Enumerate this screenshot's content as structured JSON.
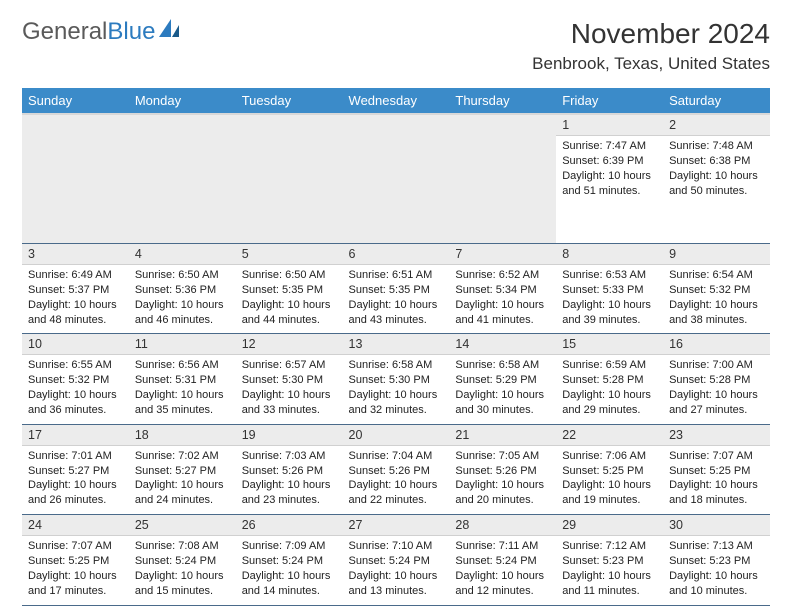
{
  "brand": {
    "word1": "General",
    "word2": "Blue",
    "word1_color": "#5a5a5a",
    "word2_color": "#2c7bbf"
  },
  "title": "November 2024",
  "location": "Benbrook, Texas, United States",
  "header_bg": "#3b8bc9",
  "day_labels": [
    "Sunday",
    "Monday",
    "Tuesday",
    "Wednesday",
    "Thursday",
    "Friday",
    "Saturday"
  ],
  "weeks": [
    [
      {
        "n": "",
        "sr": "",
        "ss": "",
        "dl": ""
      },
      {
        "n": "",
        "sr": "",
        "ss": "",
        "dl": ""
      },
      {
        "n": "",
        "sr": "",
        "ss": "",
        "dl": ""
      },
      {
        "n": "",
        "sr": "",
        "ss": "",
        "dl": ""
      },
      {
        "n": "",
        "sr": "",
        "ss": "",
        "dl": ""
      },
      {
        "n": "1",
        "sr": "Sunrise: 7:47 AM",
        "ss": "Sunset: 6:39 PM",
        "dl": "Daylight: 10 hours and 51 minutes."
      },
      {
        "n": "2",
        "sr": "Sunrise: 7:48 AM",
        "ss": "Sunset: 6:38 PM",
        "dl": "Daylight: 10 hours and 50 minutes."
      }
    ],
    [
      {
        "n": "3",
        "sr": "Sunrise: 6:49 AM",
        "ss": "Sunset: 5:37 PM",
        "dl": "Daylight: 10 hours and 48 minutes."
      },
      {
        "n": "4",
        "sr": "Sunrise: 6:50 AM",
        "ss": "Sunset: 5:36 PM",
        "dl": "Daylight: 10 hours and 46 minutes."
      },
      {
        "n": "5",
        "sr": "Sunrise: 6:50 AM",
        "ss": "Sunset: 5:35 PM",
        "dl": "Daylight: 10 hours and 44 minutes."
      },
      {
        "n": "6",
        "sr": "Sunrise: 6:51 AM",
        "ss": "Sunset: 5:35 PM",
        "dl": "Daylight: 10 hours and 43 minutes."
      },
      {
        "n": "7",
        "sr": "Sunrise: 6:52 AM",
        "ss": "Sunset: 5:34 PM",
        "dl": "Daylight: 10 hours and 41 minutes."
      },
      {
        "n": "8",
        "sr": "Sunrise: 6:53 AM",
        "ss": "Sunset: 5:33 PM",
        "dl": "Daylight: 10 hours and 39 minutes."
      },
      {
        "n": "9",
        "sr": "Sunrise: 6:54 AM",
        "ss": "Sunset: 5:32 PM",
        "dl": "Daylight: 10 hours and 38 minutes."
      }
    ],
    [
      {
        "n": "10",
        "sr": "Sunrise: 6:55 AM",
        "ss": "Sunset: 5:32 PM",
        "dl": "Daylight: 10 hours and 36 minutes."
      },
      {
        "n": "11",
        "sr": "Sunrise: 6:56 AM",
        "ss": "Sunset: 5:31 PM",
        "dl": "Daylight: 10 hours and 35 minutes."
      },
      {
        "n": "12",
        "sr": "Sunrise: 6:57 AM",
        "ss": "Sunset: 5:30 PM",
        "dl": "Daylight: 10 hours and 33 minutes."
      },
      {
        "n": "13",
        "sr": "Sunrise: 6:58 AM",
        "ss": "Sunset: 5:30 PM",
        "dl": "Daylight: 10 hours and 32 minutes."
      },
      {
        "n": "14",
        "sr": "Sunrise: 6:58 AM",
        "ss": "Sunset: 5:29 PM",
        "dl": "Daylight: 10 hours and 30 minutes."
      },
      {
        "n": "15",
        "sr": "Sunrise: 6:59 AM",
        "ss": "Sunset: 5:28 PM",
        "dl": "Daylight: 10 hours and 29 minutes."
      },
      {
        "n": "16",
        "sr": "Sunrise: 7:00 AM",
        "ss": "Sunset: 5:28 PM",
        "dl": "Daylight: 10 hours and 27 minutes."
      }
    ],
    [
      {
        "n": "17",
        "sr": "Sunrise: 7:01 AM",
        "ss": "Sunset: 5:27 PM",
        "dl": "Daylight: 10 hours and 26 minutes."
      },
      {
        "n": "18",
        "sr": "Sunrise: 7:02 AM",
        "ss": "Sunset: 5:27 PM",
        "dl": "Daylight: 10 hours and 24 minutes."
      },
      {
        "n": "19",
        "sr": "Sunrise: 7:03 AM",
        "ss": "Sunset: 5:26 PM",
        "dl": "Daylight: 10 hours and 23 minutes."
      },
      {
        "n": "20",
        "sr": "Sunrise: 7:04 AM",
        "ss": "Sunset: 5:26 PM",
        "dl": "Daylight: 10 hours and 22 minutes."
      },
      {
        "n": "21",
        "sr": "Sunrise: 7:05 AM",
        "ss": "Sunset: 5:26 PM",
        "dl": "Daylight: 10 hours and 20 minutes."
      },
      {
        "n": "22",
        "sr": "Sunrise: 7:06 AM",
        "ss": "Sunset: 5:25 PM",
        "dl": "Daylight: 10 hours and 19 minutes."
      },
      {
        "n": "23",
        "sr": "Sunrise: 7:07 AM",
        "ss": "Sunset: 5:25 PM",
        "dl": "Daylight: 10 hours and 18 minutes."
      }
    ],
    [
      {
        "n": "24",
        "sr": "Sunrise: 7:07 AM",
        "ss": "Sunset: 5:25 PM",
        "dl": "Daylight: 10 hours and 17 minutes."
      },
      {
        "n": "25",
        "sr": "Sunrise: 7:08 AM",
        "ss": "Sunset: 5:24 PM",
        "dl": "Daylight: 10 hours and 15 minutes."
      },
      {
        "n": "26",
        "sr": "Sunrise: 7:09 AM",
        "ss": "Sunset: 5:24 PM",
        "dl": "Daylight: 10 hours and 14 minutes."
      },
      {
        "n": "27",
        "sr": "Sunrise: 7:10 AM",
        "ss": "Sunset: 5:24 PM",
        "dl": "Daylight: 10 hours and 13 minutes."
      },
      {
        "n": "28",
        "sr": "Sunrise: 7:11 AM",
        "ss": "Sunset: 5:24 PM",
        "dl": "Daylight: 10 hours and 12 minutes."
      },
      {
        "n": "29",
        "sr": "Sunrise: 7:12 AM",
        "ss": "Sunset: 5:23 PM",
        "dl": "Daylight: 10 hours and 11 minutes."
      },
      {
        "n": "30",
        "sr": "Sunrise: 7:13 AM",
        "ss": "Sunset: 5:23 PM",
        "dl": "Daylight: 10 hours and 10 minutes."
      }
    ]
  ]
}
